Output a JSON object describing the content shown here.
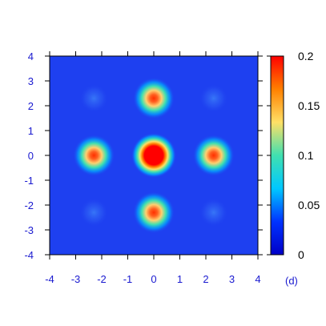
{
  "chart_data": {
    "type": "heatmap",
    "panel_label": "(d)",
    "x_ticks": [
      "-4",
      "-3",
      "-2",
      "-1",
      "0",
      "1",
      "2",
      "3",
      "4"
    ],
    "y_ticks": [
      "-4",
      "-3",
      "-2",
      "-1",
      "0",
      "1",
      "2",
      "3",
      "4"
    ],
    "xlim": [
      -4,
      4
    ],
    "ylim": [
      -4,
      4
    ],
    "colorbar": {
      "ticks": [
        "0",
        "0.05",
        "0.1",
        "0.15",
        "0.2"
      ],
      "range": [
        0,
        0.2
      ],
      "colormap": [
        "#0000c8",
        "#0033ff",
        "#00c8ff",
        "#40e0b0",
        "#ffe066",
        "#ff8000",
        "#ff0000"
      ]
    },
    "background_color": "#1e40f0",
    "peaks": [
      {
        "x": 0,
        "y": 0,
        "value": 0.2,
        "size": "large"
      },
      {
        "x": 0,
        "y": 2.3,
        "value": 0.17,
        "size": "small"
      },
      {
        "x": 0,
        "y": -2.3,
        "value": 0.17,
        "size": "small"
      },
      {
        "x": 2.3,
        "y": 0,
        "value": 0.17,
        "size": "small"
      },
      {
        "x": -2.3,
        "y": 0,
        "value": 0.17,
        "size": "small"
      },
      {
        "x": 2.3,
        "y": 2.3,
        "value": 0.01,
        "size": "faint"
      },
      {
        "x": -2.3,
        "y": 2.3,
        "value": 0.01,
        "size": "faint"
      },
      {
        "x": 2.3,
        "y": -2.3,
        "value": 0.01,
        "size": "faint"
      },
      {
        "x": -2.3,
        "y": -2.3,
        "value": 0.01,
        "size": "faint"
      }
    ]
  }
}
